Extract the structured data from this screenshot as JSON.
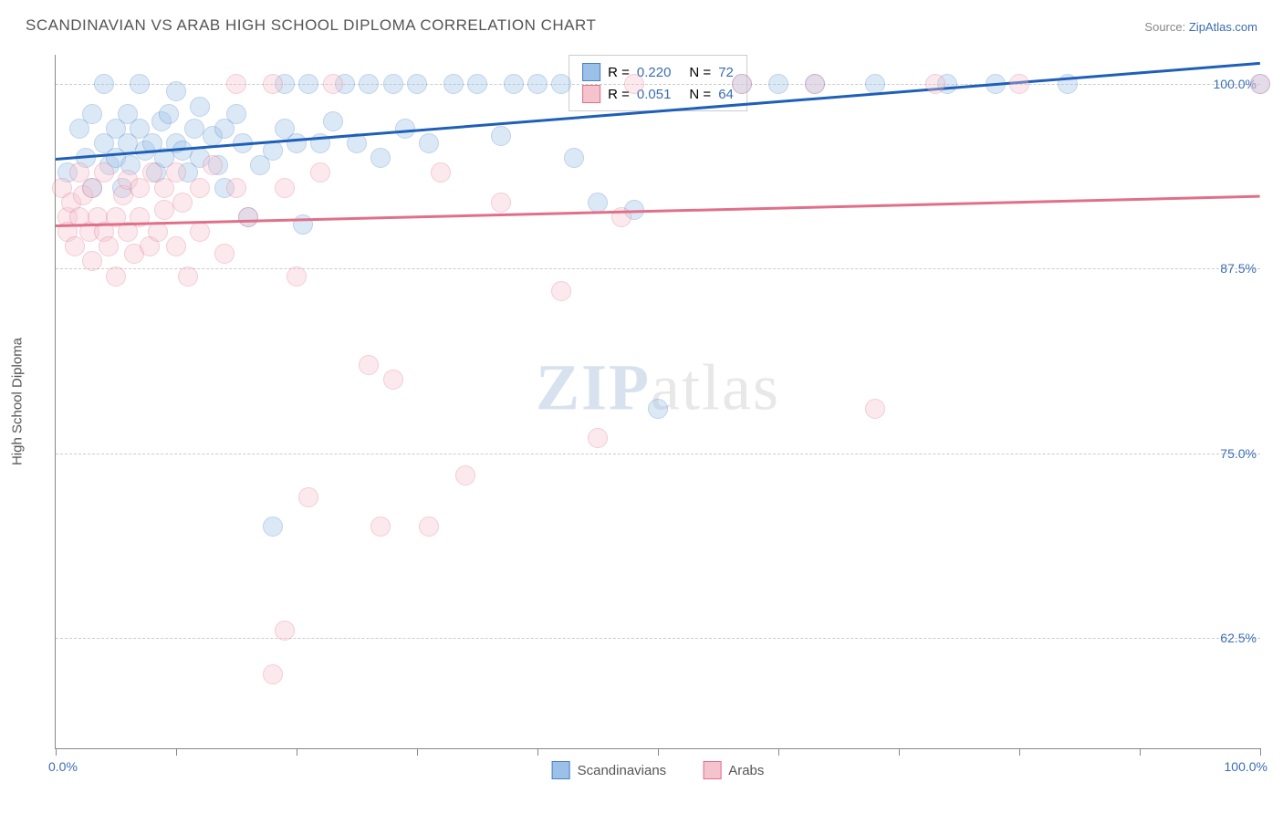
{
  "title": "SCANDINAVIAN VS ARAB HIGH SCHOOL DIPLOMA CORRELATION CHART",
  "source_label": "Source:",
  "source_name": "ZipAtlas.com",
  "watermark_zip": "ZIP",
  "watermark_atlas": "atlas",
  "chart": {
    "type": "scatter",
    "yaxis_title": "High School Diploma",
    "background_color": "#ffffff",
    "grid_color": "#cccccc",
    "axis_color": "#888888",
    "label_color": "#3b6db3",
    "text_color": "#555555",
    "xlim": [
      0,
      100
    ],
    "ylim": [
      55,
      102
    ],
    "y_ticks": [
      62.5,
      75.0,
      87.5,
      100.0
    ],
    "y_tick_labels": [
      "62.5%",
      "75.0%",
      "87.5%",
      "100.0%"
    ],
    "x_ticks": [
      0,
      10,
      20,
      30,
      40,
      50,
      60,
      70,
      80,
      90,
      100
    ],
    "xlim_labels": {
      "min": "0.0%",
      "max": "100.0%"
    },
    "marker_radius": 10,
    "marker_opacity": 0.35,
    "series": [
      {
        "name": "Scandinavians",
        "color_fill": "#9bc1e8",
        "color_stroke": "#4a7fc4",
        "r_value": "0.220",
        "n_value": "72",
        "trend": {
          "y_start": 95.0,
          "y_end": 101.5,
          "color": "#1f5fb8",
          "width": 2.5
        },
        "points": [
          [
            1,
            94
          ],
          [
            2,
            97
          ],
          [
            2.5,
            95
          ],
          [
            3,
            93
          ],
          [
            3,
            98
          ],
          [
            4,
            96
          ],
          [
            4,
            100
          ],
          [
            4.5,
            94.5
          ],
          [
            5,
            97
          ],
          [
            5,
            95
          ],
          [
            5.5,
            93
          ],
          [
            6,
            96
          ],
          [
            6,
            98
          ],
          [
            6.2,
            94.5
          ],
          [
            7,
            97
          ],
          [
            7,
            100
          ],
          [
            7.4,
            95.5
          ],
          [
            8,
            96
          ],
          [
            8.3,
            94
          ],
          [
            8.8,
            97.5
          ],
          [
            9,
            95
          ],
          [
            9.4,
            98
          ],
          [
            10,
            96
          ],
          [
            10,
            99.5
          ],
          [
            10.5,
            95.5
          ],
          [
            11,
            94
          ],
          [
            11.5,
            97
          ],
          [
            12,
            95
          ],
          [
            12,
            98.5
          ],
          [
            13,
            96.5
          ],
          [
            13.5,
            94.5
          ],
          [
            14,
            97
          ],
          [
            14,
            93
          ],
          [
            15,
            98
          ],
          [
            15.5,
            96
          ],
          [
            16,
            91
          ],
          [
            17,
            94.5
          ],
          [
            18,
            95.5
          ],
          [
            19,
            100
          ],
          [
            19,
            97
          ],
          [
            20,
            96
          ],
          [
            20.5,
            90.5
          ],
          [
            21,
            100
          ],
          [
            22,
            96
          ],
          [
            23,
            97.5
          ],
          [
            24,
            100
          ],
          [
            25,
            96
          ],
          [
            26,
            100
          ],
          [
            27,
            95
          ],
          [
            28,
            100
          ],
          [
            29,
            97
          ],
          [
            30,
            100
          ],
          [
            31,
            96
          ],
          [
            33,
            100
          ],
          [
            35,
            100
          ],
          [
            37,
            96.5
          ],
          [
            38,
            100
          ],
          [
            40,
            100
          ],
          [
            42,
            100
          ],
          [
            43,
            95
          ],
          [
            45,
            92
          ],
          [
            48,
            91.5
          ],
          [
            50,
            78
          ],
          [
            18,
            70
          ],
          [
            57,
            100
          ],
          [
            60,
            100
          ],
          [
            63,
            100
          ],
          [
            68,
            100
          ],
          [
            74,
            100
          ],
          [
            78,
            100
          ],
          [
            84,
            100
          ],
          [
            100,
            100
          ]
        ]
      },
      {
        "name": "Arabs",
        "color_fill": "#f4c3cd",
        "color_stroke": "#e0708a",
        "r_value": "0.051",
        "n_value": "64",
        "trend": {
          "y_start": 90.5,
          "y_end": 92.5,
          "color": "#e0708a",
          "width": 2.5
        },
        "points": [
          [
            0.5,
            93
          ],
          [
            1,
            91
          ],
          [
            1,
            90
          ],
          [
            1.3,
            92
          ],
          [
            1.6,
            89
          ],
          [
            2,
            94
          ],
          [
            2,
            91
          ],
          [
            2.3,
            92.5
          ],
          [
            2.8,
            90
          ],
          [
            3,
            93
          ],
          [
            3,
            88
          ],
          [
            3.5,
            91
          ],
          [
            4,
            90
          ],
          [
            4,
            94
          ],
          [
            4.4,
            89
          ],
          [
            5,
            91
          ],
          [
            5,
            87
          ],
          [
            5.6,
            92.5
          ],
          [
            6,
            90
          ],
          [
            6,
            93.5
          ],
          [
            6.5,
            88.5
          ],
          [
            7,
            93
          ],
          [
            7,
            91
          ],
          [
            7.8,
            89
          ],
          [
            8,
            94
          ],
          [
            8.5,
            90
          ],
          [
            9,
            93
          ],
          [
            9,
            91.5
          ],
          [
            10,
            89
          ],
          [
            10,
            94
          ],
          [
            10.5,
            92
          ],
          [
            11,
            87
          ],
          [
            12,
            93
          ],
          [
            12,
            90
          ],
          [
            13,
            94.5
          ],
          [
            14,
            88.5
          ],
          [
            15,
            93
          ],
          [
            15,
            100
          ],
          [
            16,
            91
          ],
          [
            18,
            60
          ],
          [
            18,
            100
          ],
          [
            19,
            93
          ],
          [
            19,
            63
          ],
          [
            20,
            87
          ],
          [
            21,
            72
          ],
          [
            22,
            94
          ],
          [
            23,
            100
          ],
          [
            26,
            81
          ],
          [
            27,
            70
          ],
          [
            28,
            80
          ],
          [
            31,
            70
          ],
          [
            32,
            94
          ],
          [
            34,
            73.5
          ],
          [
            37,
            92
          ],
          [
            42,
            86
          ],
          [
            45,
            76
          ],
          [
            47,
            91
          ],
          [
            48,
            100
          ],
          [
            57,
            100
          ],
          [
            63,
            100
          ],
          [
            68,
            78
          ],
          [
            73,
            100
          ],
          [
            80,
            100
          ],
          [
            100,
            100
          ]
        ]
      }
    ],
    "legend_stats": {
      "r_label": "R =",
      "n_label": "N ="
    },
    "bottom_legend": [
      "Scandinavians",
      "Arabs"
    ]
  }
}
